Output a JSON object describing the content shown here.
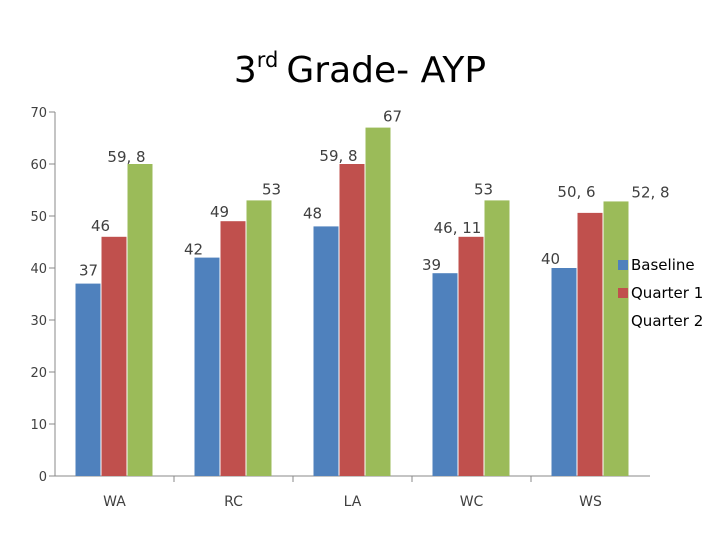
{
  "chart_data": {
    "type": "bar",
    "title": "Grade- AYP",
    "title_number": "3",
    "title_superscript": "rd",
    "categories": [
      "WA",
      "RC",
      "LA",
      "WC",
      "WS"
    ],
    "series": [
      {
        "name": "Baseline",
        "color": "#4f81bd",
        "values": [
          37,
          42,
          48,
          39,
          40
        ],
        "labels": [
          "37",
          "42",
          "48",
          "39",
          "40"
        ]
      },
      {
        "name": "Quarter 1",
        "color": "#c0504d",
        "values": [
          46,
          49,
          60,
          46,
          50.6
        ],
        "labels": [
          "46",
          "49",
          "59, 8",
          "46, 11",
          "50, 6"
        ]
      },
      {
        "name": "Quarter 2",
        "color": "#9bbb59",
        "values": [
          60,
          53,
          67,
          53,
          52.8
        ],
        "labels": [
          "59, 8",
          "53",
          "67",
          "53",
          "52, 8"
        ]
      }
    ],
    "ylim": [
      0,
      70
    ],
    "yticks": [
      "0",
      "10",
      "20",
      "30",
      "40",
      "50",
      "60",
      "70"
    ],
    "xlabel": "",
    "ylabel": "",
    "grid": false,
    "legend_position": "right"
  }
}
